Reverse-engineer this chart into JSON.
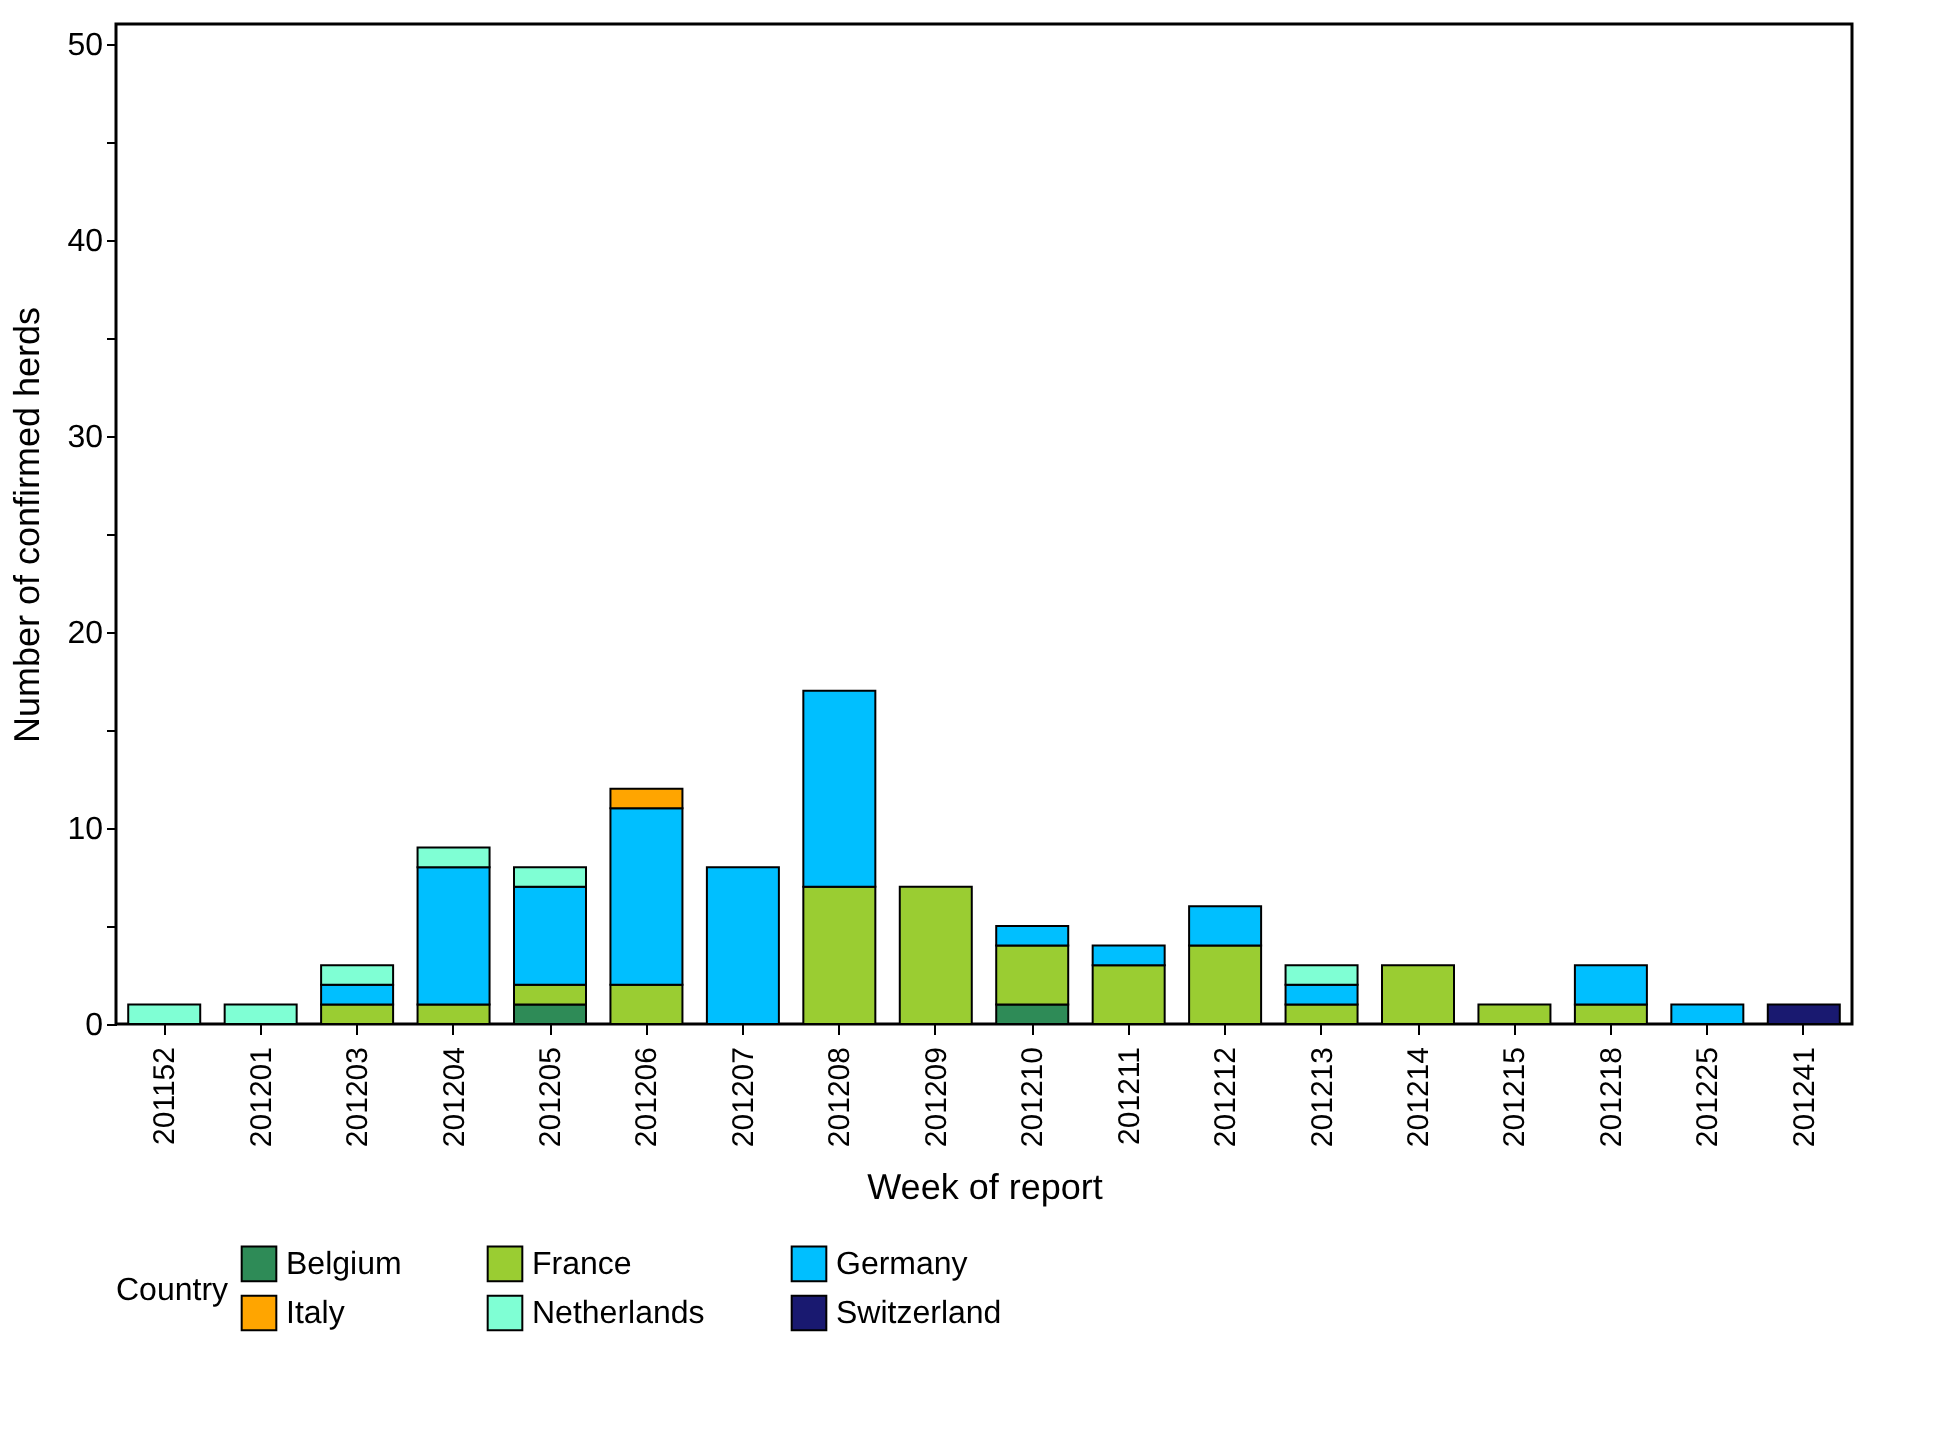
{
  "chart_data": {
    "type": "bar",
    "stacked": true,
    "xlabel": "Week of report",
    "ylabel": "Number of confirmed herds",
    "legend_title": "Country",
    "legend": "bottom",
    "grid": false,
    "categories": [
      "201152",
      "201201",
      "201203",
      "201204",
      "201205",
      "201206",
      "201207",
      "201208",
      "201209",
      "201210",
      "201211",
      "201212",
      "201213",
      "201214",
      "201215",
      "201218",
      "201225",
      "201241"
    ],
    "ylim": [
      0,
      51
    ],
    "yticks": [
      0,
      {
        "value": 5,
        "label": null
      },
      10,
      {
        "value": 15,
        "label": null
      },
      20,
      {
        "value": 25,
        "label": null
      },
      30,
      {
        "value": 35,
        "label": null
      },
      40,
      {
        "value": 45,
        "label": null
      },
      50
    ],
    "series": [
      {
        "name": "Belgium",
        "color": "#2e8b57",
        "values": [
          0,
          0,
          0,
          0,
          1,
          0,
          0,
          0,
          0,
          1,
          0,
          0,
          0,
          0,
          0,
          0,
          0,
          0
        ]
      },
      {
        "name": "France",
        "color": "#9acd32",
        "values": [
          0,
          0,
          1,
          1,
          1,
          2,
          0,
          7,
          7,
          3,
          3,
          4,
          1,
          3,
          1,
          1,
          0,
          0
        ]
      },
      {
        "name": "Germany",
        "color": "#00bfff",
        "values": [
          0,
          0,
          1,
          7,
          5,
          9,
          8,
          10,
          0,
          1,
          1,
          2,
          1,
          0,
          0,
          2,
          1,
          0
        ]
      },
      {
        "name": "Italy",
        "color": "#ffa500",
        "values": [
          0,
          0,
          0,
          0,
          0,
          1,
          0,
          0,
          0,
          0,
          0,
          0,
          0,
          0,
          0,
          0,
          0,
          0
        ]
      },
      {
        "name": "Netherlands",
        "color": "#7fffd4",
        "values": [
          1,
          1,
          1,
          1,
          1,
          0,
          0,
          0,
          0,
          0,
          0,
          0,
          1,
          0,
          0,
          0,
          0,
          0
        ]
      },
      {
        "name": "Switzerland",
        "color": "#191970",
        "values": [
          0,
          0,
          0,
          0,
          0,
          0,
          0,
          0,
          0,
          0,
          0,
          0,
          0,
          0,
          0,
          0,
          0,
          1
        ]
      }
    ]
  }
}
